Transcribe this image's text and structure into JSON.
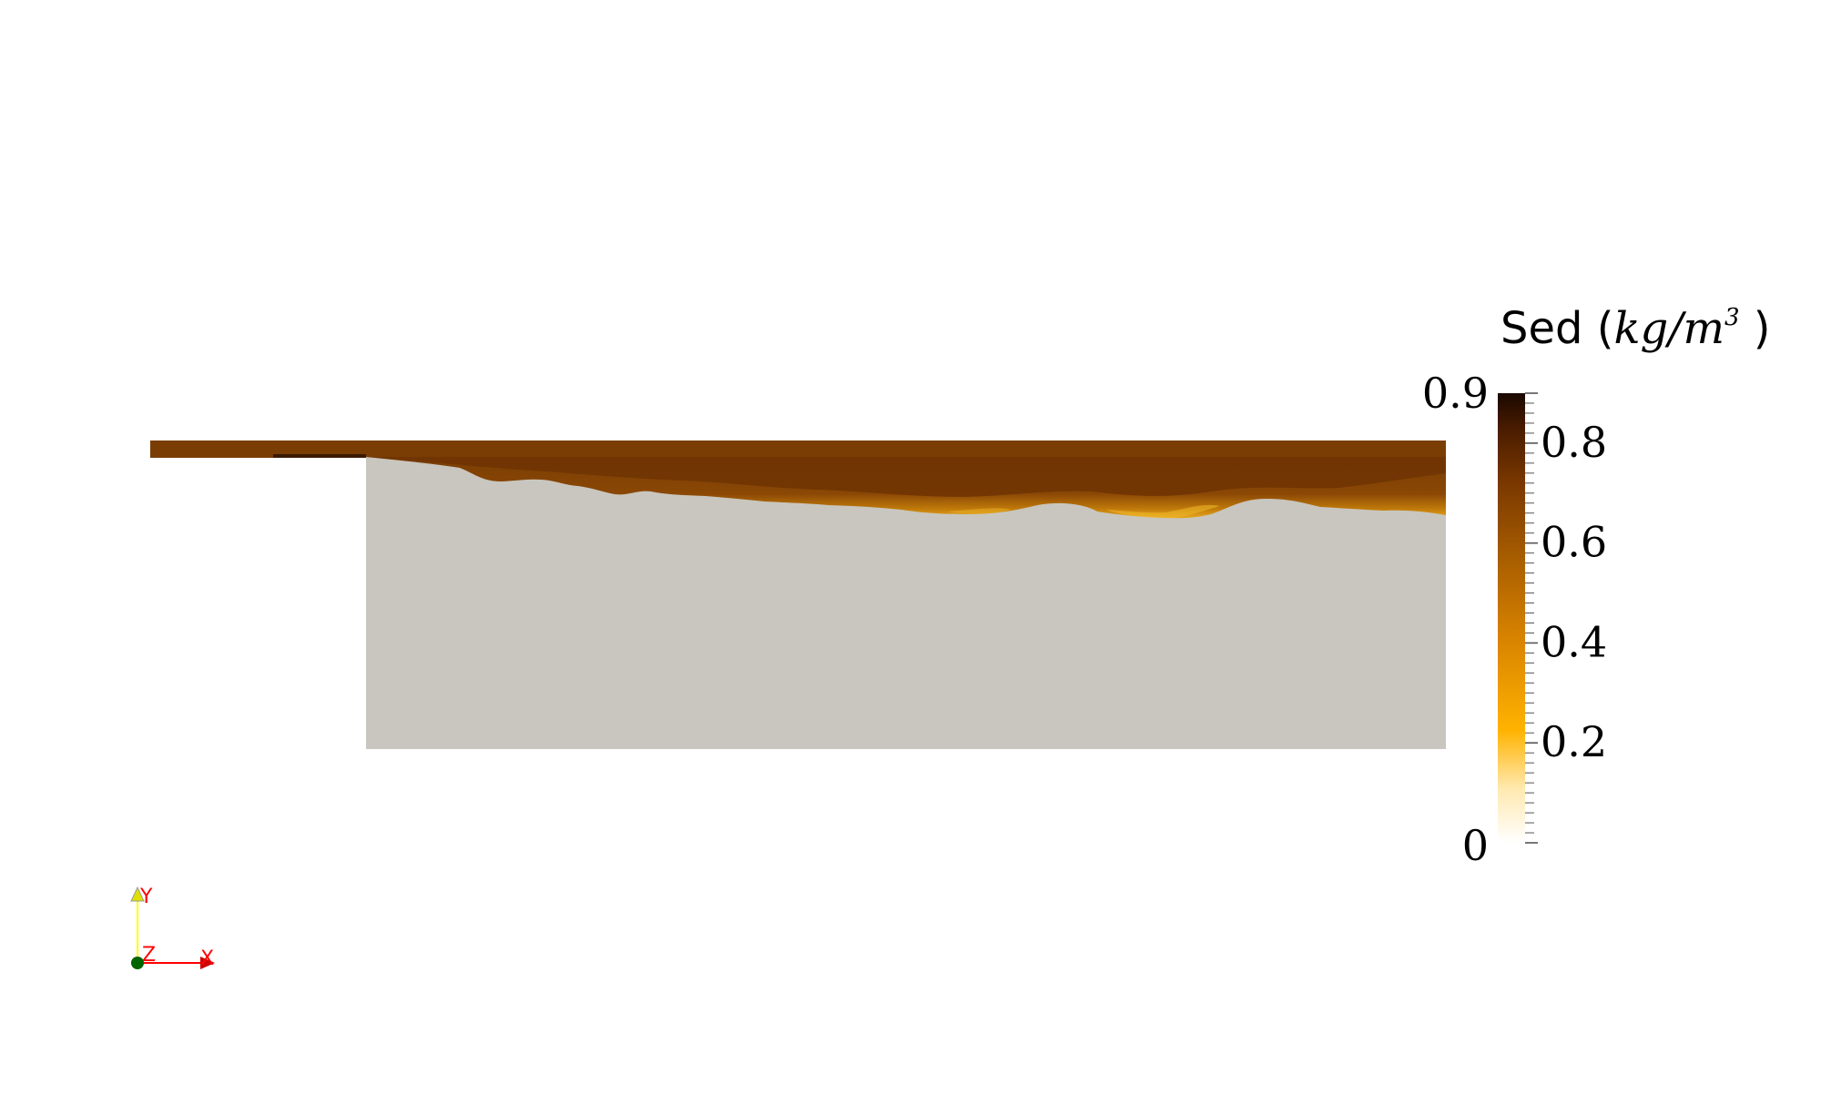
{
  "colorbar": {
    "title": "Sed (",
    "title_math": "kg/m",
    "title_exp": "3",
    "title_close": " )",
    "max_label": "0.9",
    "min_label": "0",
    "min": 0,
    "max": 0.9,
    "ticks": [
      "0.8",
      "0.6",
      "0.4",
      "0.2"
    ],
    "tick_values": [
      0.8,
      0.6,
      0.4,
      0.2
    ],
    "colors": [
      "#ffffff",
      "#ffd77a",
      "#ffac00",
      "#d98700",
      "#a35c00",
      "#7a3c00",
      "#4a1f00",
      "#1e0a00"
    ]
  },
  "axes": {
    "x_label": "X",
    "y_label": "Y",
    "z_label": "Z"
  },
  "field": {
    "background_color": "#c8c6bf",
    "current_color": "#7a3e04"
  }
}
